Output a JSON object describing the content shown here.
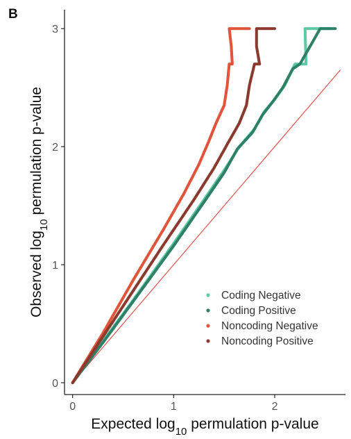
{
  "chart_data": {
    "type": "scatter",
    "panel_label": "B",
    "title": "",
    "xlabel": {
      "prefix": "Expected log",
      "subscript": "10",
      "suffix": " permulation p-value"
    },
    "ylabel": {
      "prefix": "Observed log",
      "subscript": "10",
      "suffix": " permulation p-value"
    },
    "xlim": [
      -0.08,
      2.7
    ],
    "ylim": [
      -0.1,
      3.16
    ],
    "x_ticks": [
      0,
      1,
      2
    ],
    "x_tick_labels": [
      "0",
      "1",
      "2"
    ],
    "y_ticks": [
      0,
      1,
      2,
      3
    ],
    "y_tick_labels": [
      "0",
      "1",
      "2",
      "3"
    ],
    "grid": false,
    "legend_position": "bottom-right",
    "reference_line": {
      "description": "y = x",
      "x": [
        0,
        2.65
      ],
      "y": [
        0,
        2.65
      ],
      "color": "#e8413b"
    },
    "series": [
      {
        "name": "Coding Negative",
        "color": "#5fc9a4",
        "points": [
          [
            0,
            0
          ],
          [
            0.3,
            0.35
          ],
          [
            0.6,
            0.7
          ],
          [
            1.0,
            1.18
          ],
          [
            1.3,
            1.55
          ],
          [
            1.5,
            1.8
          ],
          [
            1.65,
            2.0
          ],
          [
            1.8,
            2.15
          ],
          [
            1.9,
            2.3
          ],
          [
            2.0,
            2.4
          ],
          [
            2.1,
            2.52
          ],
          [
            2.2,
            2.7
          ],
          [
            2.31,
            2.7
          ],
          [
            2.3,
            3.0
          ],
          [
            2.55,
            3.0
          ]
        ]
      },
      {
        "name": "Coding Positive",
        "color": "#2f8068",
        "points": [
          [
            0,
            0
          ],
          [
            0.3,
            0.34
          ],
          [
            0.6,
            0.69
          ],
          [
            1.0,
            1.16
          ],
          [
            1.3,
            1.53
          ],
          [
            1.5,
            1.78
          ],
          [
            1.63,
            1.98
          ],
          [
            1.78,
            2.12
          ],
          [
            1.88,
            2.27
          ],
          [
            1.98,
            2.38
          ],
          [
            2.08,
            2.5
          ],
          [
            2.18,
            2.66
          ],
          [
            2.25,
            2.7
          ],
          [
            2.45,
            3.0
          ],
          [
            2.6,
            3.0
          ]
        ]
      },
      {
        "name": "Noncoding Negative",
        "color": "#e0553b",
        "points": [
          [
            0,
            0
          ],
          [
            0.3,
            0.42
          ],
          [
            0.6,
            0.87
          ],
          [
            0.9,
            1.3
          ],
          [
            1.1,
            1.6
          ],
          [
            1.25,
            1.85
          ],
          [
            1.35,
            2.05
          ],
          [
            1.42,
            2.2
          ],
          [
            1.5,
            2.35
          ],
          [
            1.53,
            2.52
          ],
          [
            1.55,
            2.7
          ],
          [
            1.58,
            2.7
          ],
          [
            1.57,
            2.85
          ],
          [
            1.55,
            3.0
          ],
          [
            1.75,
            3.0
          ]
        ]
      },
      {
        "name": "Noncoding Positive",
        "color": "#8b3a2e",
        "points": [
          [
            0,
            0
          ],
          [
            0.3,
            0.39
          ],
          [
            0.6,
            0.78
          ],
          [
            0.9,
            1.17
          ],
          [
            1.2,
            1.55
          ],
          [
            1.4,
            1.82
          ],
          [
            1.55,
            2.05
          ],
          [
            1.65,
            2.2
          ],
          [
            1.72,
            2.35
          ],
          [
            1.75,
            2.52
          ],
          [
            1.8,
            2.7
          ],
          [
            1.85,
            2.7
          ],
          [
            1.82,
            2.85
          ],
          [
            1.82,
            3.0
          ],
          [
            2.0,
            3.0
          ]
        ]
      }
    ]
  }
}
